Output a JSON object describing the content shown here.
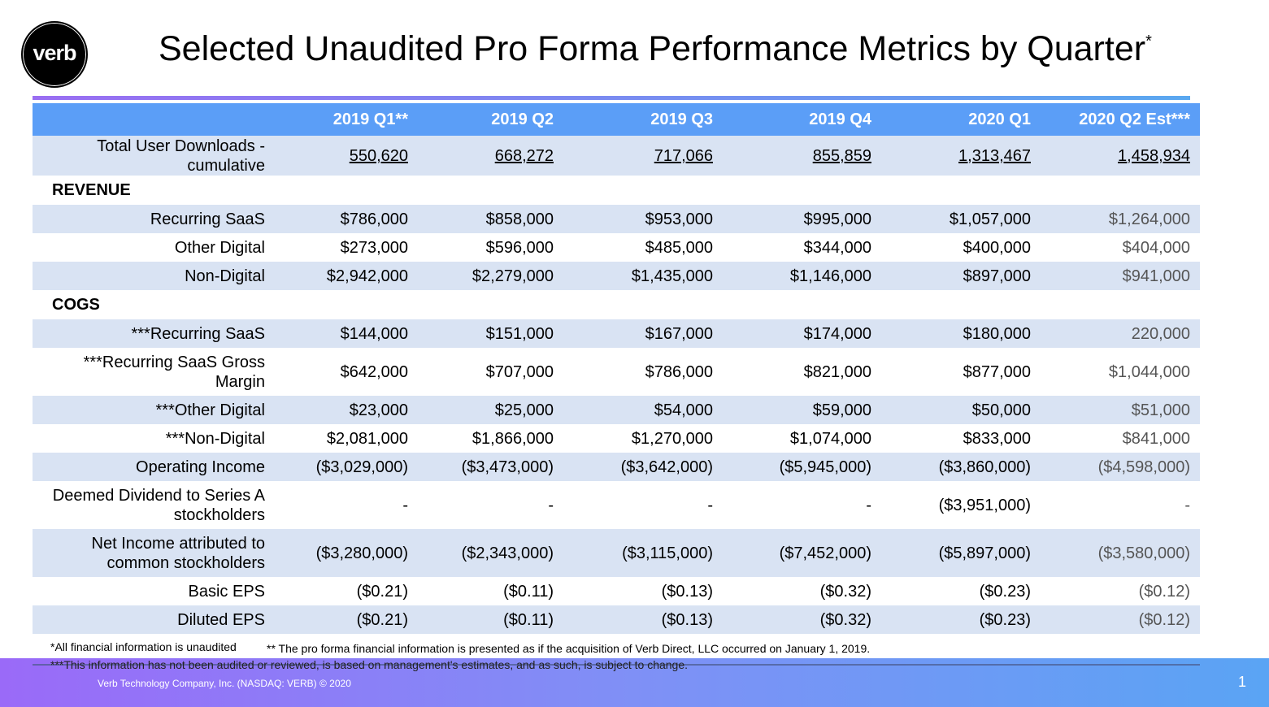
{
  "logo_text": "verb",
  "title": "Selected Unaudited Pro Forma Performance Metrics by Quarter",
  "title_mark": "*",
  "columns": [
    "",
    "2019 Q1**",
    "2019 Q2",
    "2019 Q3",
    "2019 Q4",
    "2020 Q1",
    "2020 Q2 Est***"
  ],
  "rows": [
    {
      "label": "Total User Downloads - cumulative",
      "values": [
        "550,620",
        "668,272",
        "717,066",
        "855,859",
        "1,313,467",
        "1,458,934"
      ],
      "kind": "downloads"
    },
    {
      "label": "REVENUE",
      "kind": "section"
    },
    {
      "label": "Recurring SaaS",
      "values": [
        "$786,000",
        "$858,000",
        "$953,000",
        "$995,000",
        "$1,057,000",
        "$1,264,000"
      ]
    },
    {
      "label": "Other Digital",
      "values": [
        "$273,000",
        "$596,000",
        "$485,000",
        "$344,000",
        "$400,000",
        "$404,000"
      ]
    },
    {
      "label": "Non-Digital",
      "values": [
        "$2,942,000",
        "$2,279,000",
        "$1,435,000",
        "$1,146,000",
        "$897,000",
        "$941,000"
      ]
    },
    {
      "label": "COGS",
      "kind": "section"
    },
    {
      "label": "***Recurring SaaS",
      "values": [
        "$144,000",
        "$151,000",
        "$167,000",
        "$174,000",
        "$180,000",
        "220,000"
      ]
    },
    {
      "label": "***Recurring SaaS Gross Margin",
      "values": [
        "$642,000",
        "$707,000",
        "$786,000",
        "$821,000",
        "$877,000",
        "$1,044,000"
      ],
      "kind": "tall2"
    },
    {
      "label": "***Other Digital",
      "values": [
        "$23,000",
        "$25,000",
        "$54,000",
        "$59,000",
        "$50,000",
        "$51,000"
      ]
    },
    {
      "label": "***Non-Digital",
      "values": [
        "$2,081,000",
        "$1,866,000",
        "$1,270,000",
        "$1,074,000",
        "$833,000",
        "$841,000"
      ]
    },
    {
      "label": "Operating Income",
      "values": [
        "($3,029,000)",
        "($3,473,000)",
        "($3,642,000)",
        "($5,945,000)",
        "($3,860,000)",
        "($4,598,000)"
      ]
    },
    {
      "label": "Deemed Dividend to Series A stockholders",
      "values": [
        "-",
        "-",
        "-",
        "-",
        "($3,951,000)",
        "-"
      ],
      "kind": "tall2"
    },
    {
      "label": "Net Income attributed to common stockholders",
      "values": [
        "($3,280,000)",
        "($2,343,000)",
        "($3,115,000)",
        "($7,452,000)",
        "($5,897,000)",
        "($3,580,000)"
      ],
      "kind": "tall2"
    },
    {
      "label": "Basic EPS",
      "values": [
        "($0.21)",
        "($0.11)",
        "($0.13)",
        "($0.32)",
        "($0.23)",
        "($0.12)"
      ]
    },
    {
      "label": "Diluted EPS",
      "values": [
        "($0.21)",
        "($0.11)",
        "($0.13)",
        "($0.32)",
        "($0.23)",
        "($0.12)"
      ]
    }
  ],
  "footnotes": {
    "unaudited": "*All financial information is unaudited",
    "pro_forma": "** The pro forma financial information is presented as if the acquisition of Verb Direct, LLC occurred on January 1, 2019.",
    "estimates": "***This information has not been audited or reviewed, is based on management's estimates, and as such, is subject to change."
  },
  "footer": {
    "copyright": "Verb Technology Company, Inc. (NASDAQ: VERB) © 2020",
    "page_number": "1"
  },
  "colors": {
    "header_blue": "#5b9ef7",
    "row_shade": "#d9e3f3",
    "gradient_start": "#9a6af8",
    "gradient_end": "#5aa4f4"
  }
}
